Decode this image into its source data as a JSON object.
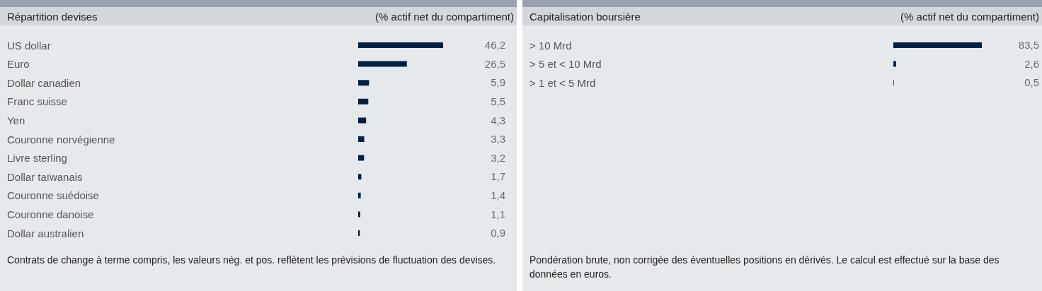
{
  "chart_data": [
    {
      "type": "bar",
      "orientation": "horizontal",
      "title": "Répartition devises",
      "subtitle": "(% actif net du compartiment)",
      "categories": [
        "US dollar",
        "Euro",
        "Dollar canadien",
        "Franc suisse",
        "Yen",
        "Couronne norvégienne",
        "Livre sterling",
        "Dollar taïwanais",
        "Couronne suédoise",
        "Couronne danoise",
        "Dollar australien"
      ],
      "values": [
        46.2,
        26.5,
        5.9,
        5.5,
        4.3,
        3.3,
        3.2,
        1.7,
        1.4,
        1.1,
        0.9
      ],
      "value_labels": [
        "46,2",
        "26,5",
        "5,9",
        "5,5",
        "4,3",
        "3,3",
        "3,2",
        "1,7",
        "1,4",
        "1,1",
        "0,9"
      ],
      "color": "#002145",
      "grid": false,
      "legend": false,
      "tick_labels": "y",
      "annotations": [
        "Contrats de change à terme compris, les valeurs nég. et pos. reflètent les prévisions de fluctuation des devises."
      ]
    },
    {
      "type": "bar",
      "orientation": "horizontal",
      "title": "Capitalisation boursière",
      "subtitle": "(% actif net du compartiment)",
      "categories": [
        "> 10 Mrd",
        "> 5 et < 10 Mrd",
        "> 1 et < 5 Mrd"
      ],
      "values": [
        83.5,
        2.6,
        0.5
      ],
      "value_labels": [
        "83,5",
        "2,6",
        "0,5"
      ],
      "color": "#002145",
      "grid": false,
      "legend": false,
      "tick_labels": "y",
      "annotations": [
        "Pondération brute, non corrigée des éventuelles positions en dérivés. Le calcul est effectué sur la base des données en euros."
      ]
    }
  ]
}
